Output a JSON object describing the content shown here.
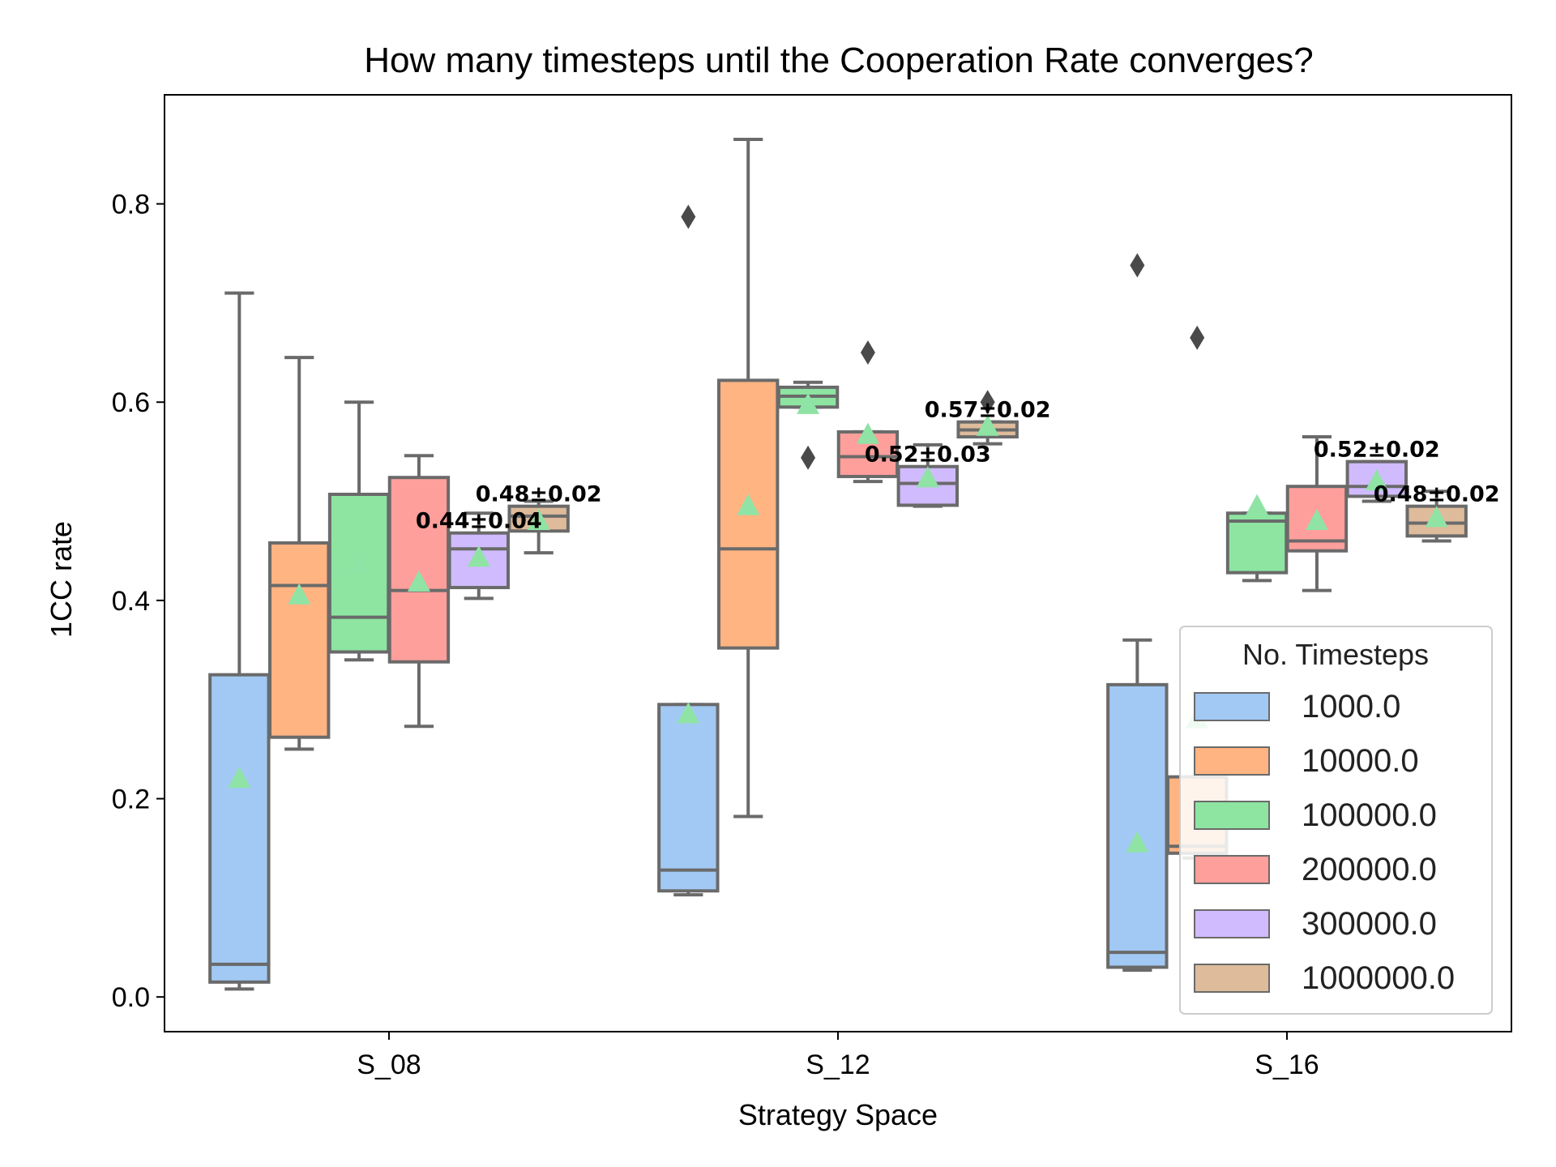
{
  "chart_data": {
    "type": "box",
    "title": "How many timesteps until the Cooperation Rate converges?",
    "xlabel": "Strategy Space",
    "ylabel": "1CC rate",
    "categories": [
      "S_08",
      "S_12",
      "S_16"
    ],
    "ylim": [
      -0.035,
      0.91
    ],
    "yticks": [
      "0.0",
      "0.2",
      "0.4",
      "0.6",
      "0.8"
    ],
    "legend": {
      "title": "No. Timesteps",
      "position": "lower right"
    },
    "mean_marker_color": "#8fe3a5",
    "series": [
      {
        "name": "1000.0",
        "color": "#a1c9f4",
        "boxes": [
          {
            "whislo": 0.008,
            "q1": 0.015,
            "med": 0.033,
            "q3": 0.325,
            "whishi": 0.71,
            "mean": 0.22,
            "fliers": []
          },
          {
            "whislo": 0.103,
            "q1": 0.107,
            "med": 0.128,
            "q3": 0.295,
            "whishi": 0.295,
            "mean": 0.285,
            "fliers": [
              0.787
            ]
          },
          {
            "whislo": 0.027,
            "q1": 0.03,
            "med": 0.045,
            "q3": 0.315,
            "whishi": 0.36,
            "mean": 0.155,
            "fliers": [
              0.738
            ]
          }
        ]
      },
      {
        "name": "10000.0",
        "color": "#ffb482",
        "boxes": [
          {
            "whislo": 0.25,
            "q1": 0.262,
            "med": 0.415,
            "q3": 0.458,
            "whishi": 0.645,
            "mean": 0.405,
            "fliers": []
          },
          {
            "whislo": 0.182,
            "q1": 0.352,
            "med": 0.452,
            "q3": 0.622,
            "whishi": 0.865,
            "mean": 0.495,
            "fliers": []
          },
          {
            "whislo": 0.14,
            "q1": 0.145,
            "med": 0.152,
            "q3": 0.222,
            "whishi": 0.222,
            "mean": 0.28,
            "fliers": [
              0.665
            ]
          }
        ]
      },
      {
        "name": "100000.0",
        "color": "#8de5a1",
        "boxes": [
          {
            "whislo": 0.34,
            "q1": 0.348,
            "med": 0.383,
            "q3": 0.507,
            "whishi": 0.6,
            "mean": 0.435,
            "fliers": []
          },
          {
            "whislo": 0.595,
            "q1": 0.595,
            "med": 0.606,
            "q3": 0.615,
            "whishi": 0.62,
            "mean": 0.597,
            "fliers": [
              0.544
            ]
          },
          {
            "whislo": 0.42,
            "q1": 0.428,
            "med": 0.48,
            "q3": 0.488,
            "whishi": 0.488,
            "mean": 0.495,
            "fliers": []
          }
        ]
      },
      {
        "name": "200000.0",
        "color": "#ff9f9b",
        "boxes": [
          {
            "whislo": 0.273,
            "q1": 0.338,
            "med": 0.41,
            "q3": 0.524,
            "whishi": 0.546,
            "mean": 0.418,
            "fliers": []
          },
          {
            "whislo": 0.52,
            "q1": 0.525,
            "med": 0.545,
            "q3": 0.57,
            "whishi": 0.57,
            "mean": 0.567,
            "fliers": [
              0.65
            ]
          },
          {
            "whislo": 0.41,
            "q1": 0.45,
            "med": 0.46,
            "q3": 0.515,
            "whishi": 0.565,
            "mean": 0.48,
            "fliers": []
          }
        ]
      },
      {
        "name": "300000.0",
        "color": "#d0bbff",
        "boxes": [
          {
            "whislo": 0.402,
            "q1": 0.413,
            "med": 0.452,
            "q3": 0.468,
            "whishi": 0.488,
            "mean": 0.443,
            "fliers": [],
            "label": "0.44±0.04"
          },
          {
            "whislo": 0.495,
            "q1": 0.496,
            "med": 0.518,
            "q3": 0.535,
            "whishi": 0.557,
            "mean": 0.523,
            "fliers": [],
            "label": "0.52±0.03"
          },
          {
            "whislo": 0.5,
            "q1": 0.505,
            "med": 0.515,
            "q3": 0.54,
            "whishi": 0.54,
            "mean": 0.52,
            "fliers": [],
            "label": "0.52±0.02"
          }
        ]
      },
      {
        "name": "1000000.0",
        "color": "#debb9b",
        "boxes": [
          {
            "whislo": 0.448,
            "q1": 0.47,
            "med": 0.485,
            "q3": 0.495,
            "whishi": 0.5,
            "mean": 0.48,
            "fliers": [],
            "label": "0.48±0.02"
          },
          {
            "whislo": 0.558,
            "q1": 0.565,
            "med": 0.572,
            "q3": 0.58,
            "whishi": 0.58,
            "mean": 0.575,
            "fliers": [
              0.6
            ],
            "label": "0.57±0.02"
          },
          {
            "whislo": 0.46,
            "q1": 0.465,
            "med": 0.478,
            "q3": 0.495,
            "whishi": 0.51,
            "mean": 0.483,
            "fliers": [],
            "label": "0.48±0.02"
          }
        ]
      }
    ]
  }
}
